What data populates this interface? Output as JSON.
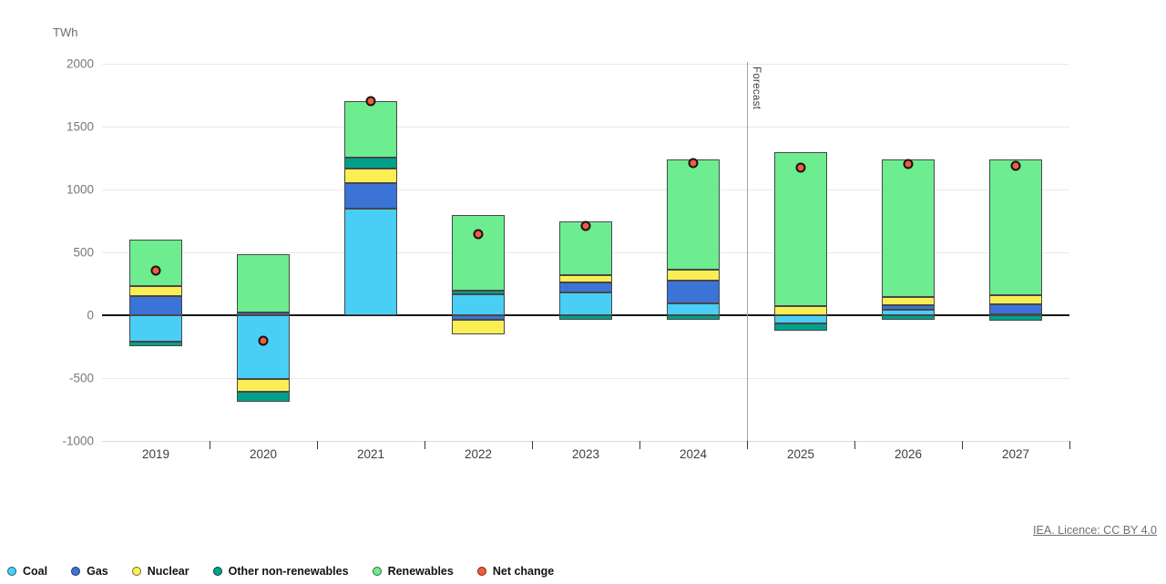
{
  "unit_label": "TWh",
  "forecast_label": "Forecast",
  "licence_text": "IEA. Licence: CC BY 4.0",
  "colors": {
    "coal": "#49CFF5",
    "gas": "#3C73D6",
    "nuclear": "#FAEE55",
    "other_non_renewables": "#00A18C",
    "renewables": "#6DEC90",
    "net_change": "#F25B3D",
    "bar_border": "#474747",
    "zero_line": "#161616",
    "gridline": "#e9e9e9",
    "forecast_line": "#a2a4a6"
  },
  "chart_data": {
    "type": "bar",
    "stacked": true,
    "title": "",
    "xlabel": "",
    "ylabel": "TWh",
    "ylim": [
      -1000,
      2000
    ],
    "yticks": [
      2000,
      1500,
      1000,
      500,
      0,
      -500,
      -1000
    ],
    "grid": true,
    "legend_position": "bottom",
    "categories": [
      "2019",
      "2020",
      "2021",
      "2022",
      "2023",
      "2024",
      "2025",
      "2026",
      "2027"
    ],
    "forecast_divider_after_category": "2024",
    "series": [
      {
        "name": "Coal",
        "type": "bar",
        "color": "#49CFF5",
        "values": [
          -210,
          -510,
          850,
          165,
          180,
          95,
          -65,
          45,
          10
        ]
      },
      {
        "name": "Gas",
        "type": "bar",
        "color": "#3C73D6",
        "values": [
          150,
          20,
          200,
          -35,
          80,
          180,
          0,
          35,
          75
        ]
      },
      {
        "name": "Nuclear",
        "type": "bar",
        "color": "#FAEE55",
        "values": [
          80,
          -100,
          120,
          -120,
          60,
          85,
          75,
          65,
          75
        ]
      },
      {
        "name": "Other non-renewables",
        "type": "bar",
        "color": "#00A18C",
        "values": [
          -35,
          -75,
          85,
          30,
          -35,
          -35,
          -60,
          -35,
          -45
        ]
      },
      {
        "name": "Renewables",
        "type": "bar",
        "color": "#6DEC90",
        "values": [
          375,
          465,
          445,
          605,
          425,
          880,
          1225,
          1095,
          1080
        ]
      },
      {
        "name": "Net change",
        "type": "scatter",
        "color": "#F25B3D",
        "values": [
          355,
          -200,
          1700,
          645,
          710,
          1210,
          1175,
          1205,
          1190
        ]
      }
    ]
  }
}
